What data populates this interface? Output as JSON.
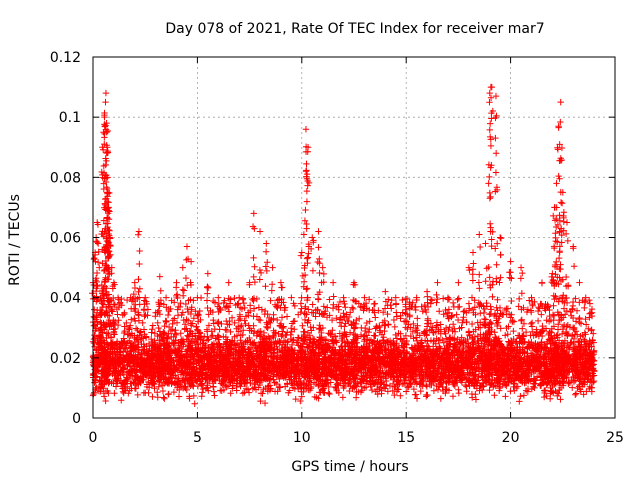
{
  "chart_data": {
    "type": "scatter",
    "title": "Day 078 of 2021, Rate Of TEC Index for receiver mar7",
    "xlabel": "GPS time / hours",
    "ylabel": "ROTI / TECUs",
    "xlim": [
      0,
      25
    ],
    "ylim": [
      0,
      0.12
    ],
    "xticks": [
      0,
      5,
      10,
      15,
      20,
      25
    ],
    "yticks": [
      0,
      0.02,
      0.04,
      0.06,
      0.08,
      0.1,
      0.12
    ],
    "xtick_labels": [
      "0",
      "5",
      "10",
      "15",
      "20",
      "25"
    ],
    "ytick_labels": [
      "0",
      "0.02",
      "0.04",
      "0.06",
      "0.08",
      "0.1",
      "0.12"
    ],
    "grid": true,
    "marker": "+",
    "color": "#ff0000",
    "series": [
      {
        "name": "ROTI",
        "x": [
          0.0,
          0.1,
          0.15,
          0.2,
          0.25,
          0.3,
          0.35,
          0.4,
          0.45,
          0.5,
          0.55,
          0.6,
          0.62,
          0.65,
          0.68,
          0.7,
          0.72,
          0.75,
          0.8,
          0.9,
          1.0,
          1.2,
          1.5,
          1.8,
          2.0,
          2.2,
          2.5,
          3.0,
          3.2,
          3.5,
          4.0,
          4.3,
          4.5,
          4.7,
          5.0,
          5.5,
          6.0,
          6.5,
          7.0,
          7.5,
          7.7,
          8.0,
          8.3,
          8.6,
          9.0,
          9.5,
          10.0,
          10.1,
          10.2,
          10.3,
          10.5,
          10.8,
          11.0,
          11.5,
          12.0,
          12.5,
          13.0,
          13.5,
          14.0,
          14.5,
          15.0,
          15.5,
          16.0,
          16.5,
          17.0,
          17.5,
          18.0,
          18.2,
          18.5,
          18.8,
          19.0,
          19.1,
          19.3,
          19.5,
          20.0,
          20.5,
          21.0,
          21.5,
          22.0,
          22.1,
          22.2,
          22.3,
          22.4,
          22.5,
          22.7,
          23.0,
          23.3,
          23.6,
          23.8,
          23.9
        ],
        "y": [
          0.045,
          0.055,
          0.06,
          0.065,
          0.058,
          0.05,
          0.04,
          0.035,
          0.09,
          0.095,
          0.1,
          0.105,
          0.108,
          0.098,
          0.09,
          0.08,
          0.075,
          0.07,
          0.06,
          0.05,
          0.045,
          0.04,
          0.035,
          0.04,
          0.045,
          0.062,
          0.04,
          0.035,
          0.047,
          0.04,
          0.045,
          0.05,
          0.057,
          0.052,
          0.04,
          0.048,
          0.04,
          0.045,
          0.04,
          0.045,
          0.068,
          0.062,
          0.058,
          0.05,
          0.045,
          0.04,
          0.055,
          0.061,
          0.096,
          0.09,
          0.06,
          0.062,
          0.05,
          0.045,
          0.04,
          0.045,
          0.04,
          0.038,
          0.042,
          0.04,
          0.036,
          0.04,
          0.042,
          0.045,
          0.04,
          0.045,
          0.05,
          0.055,
          0.061,
          0.058,
          0.108,
          0.11,
          0.107,
          0.06,
          0.052,
          0.05,
          0.04,
          0.045,
          0.048,
          0.07,
          0.078,
          0.097,
          0.105,
          0.075,
          0.065,
          0.057,
          0.045,
          0.04,
          0.038,
          0.035
        ],
        "baseline_band": [
          0.005,
          0.03
        ]
      }
    ]
  }
}
